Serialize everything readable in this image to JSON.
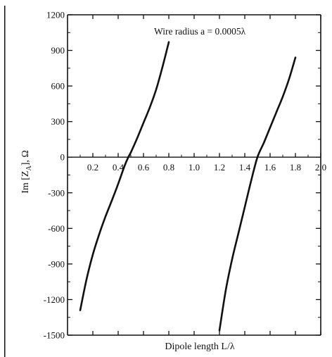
{
  "colors": {
    "curve": "#111111",
    "axis": "#111111",
    "background": "#ffffff"
  },
  "chart_data": {
    "type": "line",
    "title": "",
    "xlabel": "Dipole length L/λ",
    "ylabel": "Im [ZA], Ω",
    "ylabel_parts": {
      "main": "Im [Z",
      "sub": "A",
      "tail": "], Ω"
    },
    "xlim": [
      0,
      2.0
    ],
    "ylim": [
      -1500,
      1200
    ],
    "x_ticks": [
      0.2,
      0.4,
      0.6,
      0.8,
      1.0,
      1.2,
      1.4,
      1.6,
      1.8,
      2.0
    ],
    "x_tick_labels": [
      "0.2",
      "0.4",
      "0.6",
      "0.8",
      "1.0",
      "1.2",
      "1.4",
      "1.6",
      "1.8",
      "2.0"
    ],
    "y_ticks": [
      1200,
      900,
      600,
      300,
      0,
      -300,
      -600,
      -900,
      -1200,
      -1500
    ],
    "y_tick_labels": [
      "1200",
      "900",
      "600",
      "300",
      "0",
      "-300",
      "-600",
      "-900",
      "-1200",
      "-1500"
    ],
    "grid": false,
    "legend": "none",
    "annotation": "Wire radius a = 0.0005λ",
    "series": [
      {
        "x": [
          0.1,
          0.15,
          0.2,
          0.25,
          0.3,
          0.35,
          0.4,
          0.45,
          0.48,
          0.5,
          0.55,
          0.6,
          0.65,
          0.7,
          0.75,
          0.8
        ],
        "y": [
          -1290,
          -1030,
          -820,
          -650,
          -500,
          -365,
          -225,
          -75,
          0,
          40,
          160,
          290,
          420,
          570,
          760,
          970
        ]
      },
      {
        "x": [
          1.2,
          1.25,
          1.3,
          1.35,
          1.4,
          1.45,
          1.5,
          1.55,
          1.6,
          1.65,
          1.7,
          1.75,
          1.8
        ],
        "y": [
          -1460,
          -1120,
          -860,
          -640,
          -420,
          -200,
          0,
          120,
          250,
          380,
          510,
          660,
          840
        ]
      }
    ]
  }
}
